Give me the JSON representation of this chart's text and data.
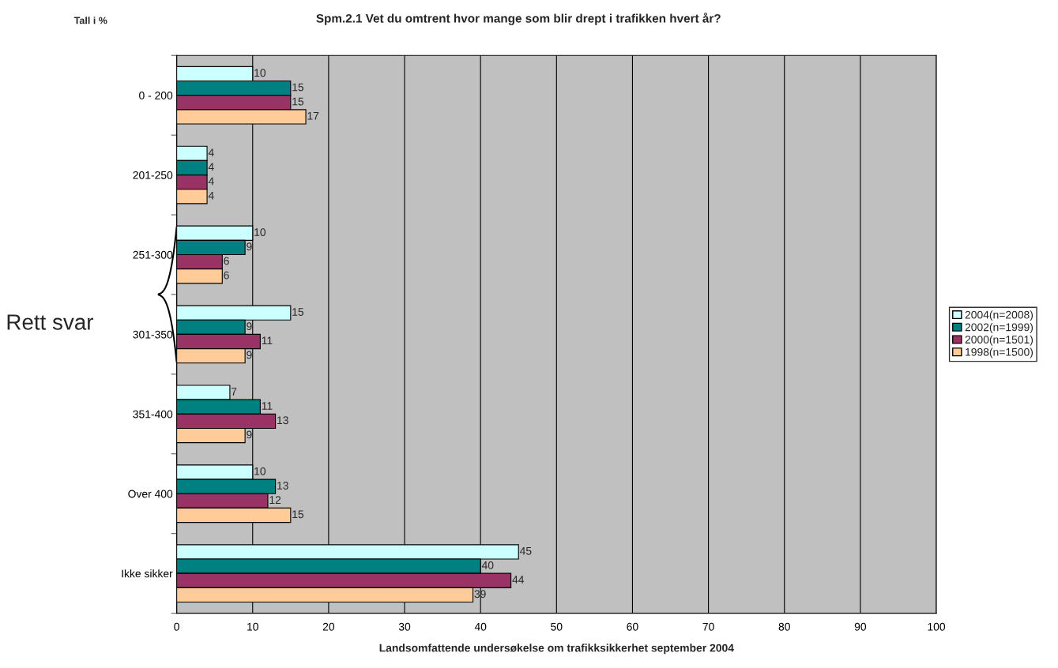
{
  "chart_data": {
    "type": "bar",
    "orientation": "horizontal",
    "title": "Spm.2.1 Vet du omtrent hvor mange som blir drept i trafikken hvert år?",
    "xlabel": "Landsomfattende undersøkelse om trafikksikkerhet september 2004",
    "annotations": [
      "Tall i %",
      "Rett svar"
    ],
    "categories": [
      "0 - 200",
      "201-250",
      "251-300",
      "301-350",
      "351-400",
      "Over 400",
      "Ikke sikker"
    ],
    "series": [
      {
        "name": "2004(n=2008)",
        "color": "#ccffff",
        "values": [
          10,
          4,
          10,
          15,
          7,
          10,
          45
        ]
      },
      {
        "name": "2002(n=1999)",
        "color": "#008080",
        "values": [
          15,
          4,
          9,
          9,
          11,
          13,
          40
        ]
      },
      {
        "name": "2000(n=1501)",
        "color": "#993366",
        "values": [
          15,
          4,
          6,
          11,
          13,
          12,
          44
        ]
      },
      {
        "name": "1998(n=1500)",
        "color": "#ffcc99",
        "values": [
          17,
          4,
          6,
          9,
          9,
          15,
          39
        ]
      }
    ],
    "xlim": [
      0,
      100
    ],
    "xticks": [
      0,
      10,
      20,
      30,
      40,
      50,
      60,
      70,
      80,
      90,
      100
    ],
    "grid": "x",
    "legend": "right",
    "data_labels": true
  }
}
